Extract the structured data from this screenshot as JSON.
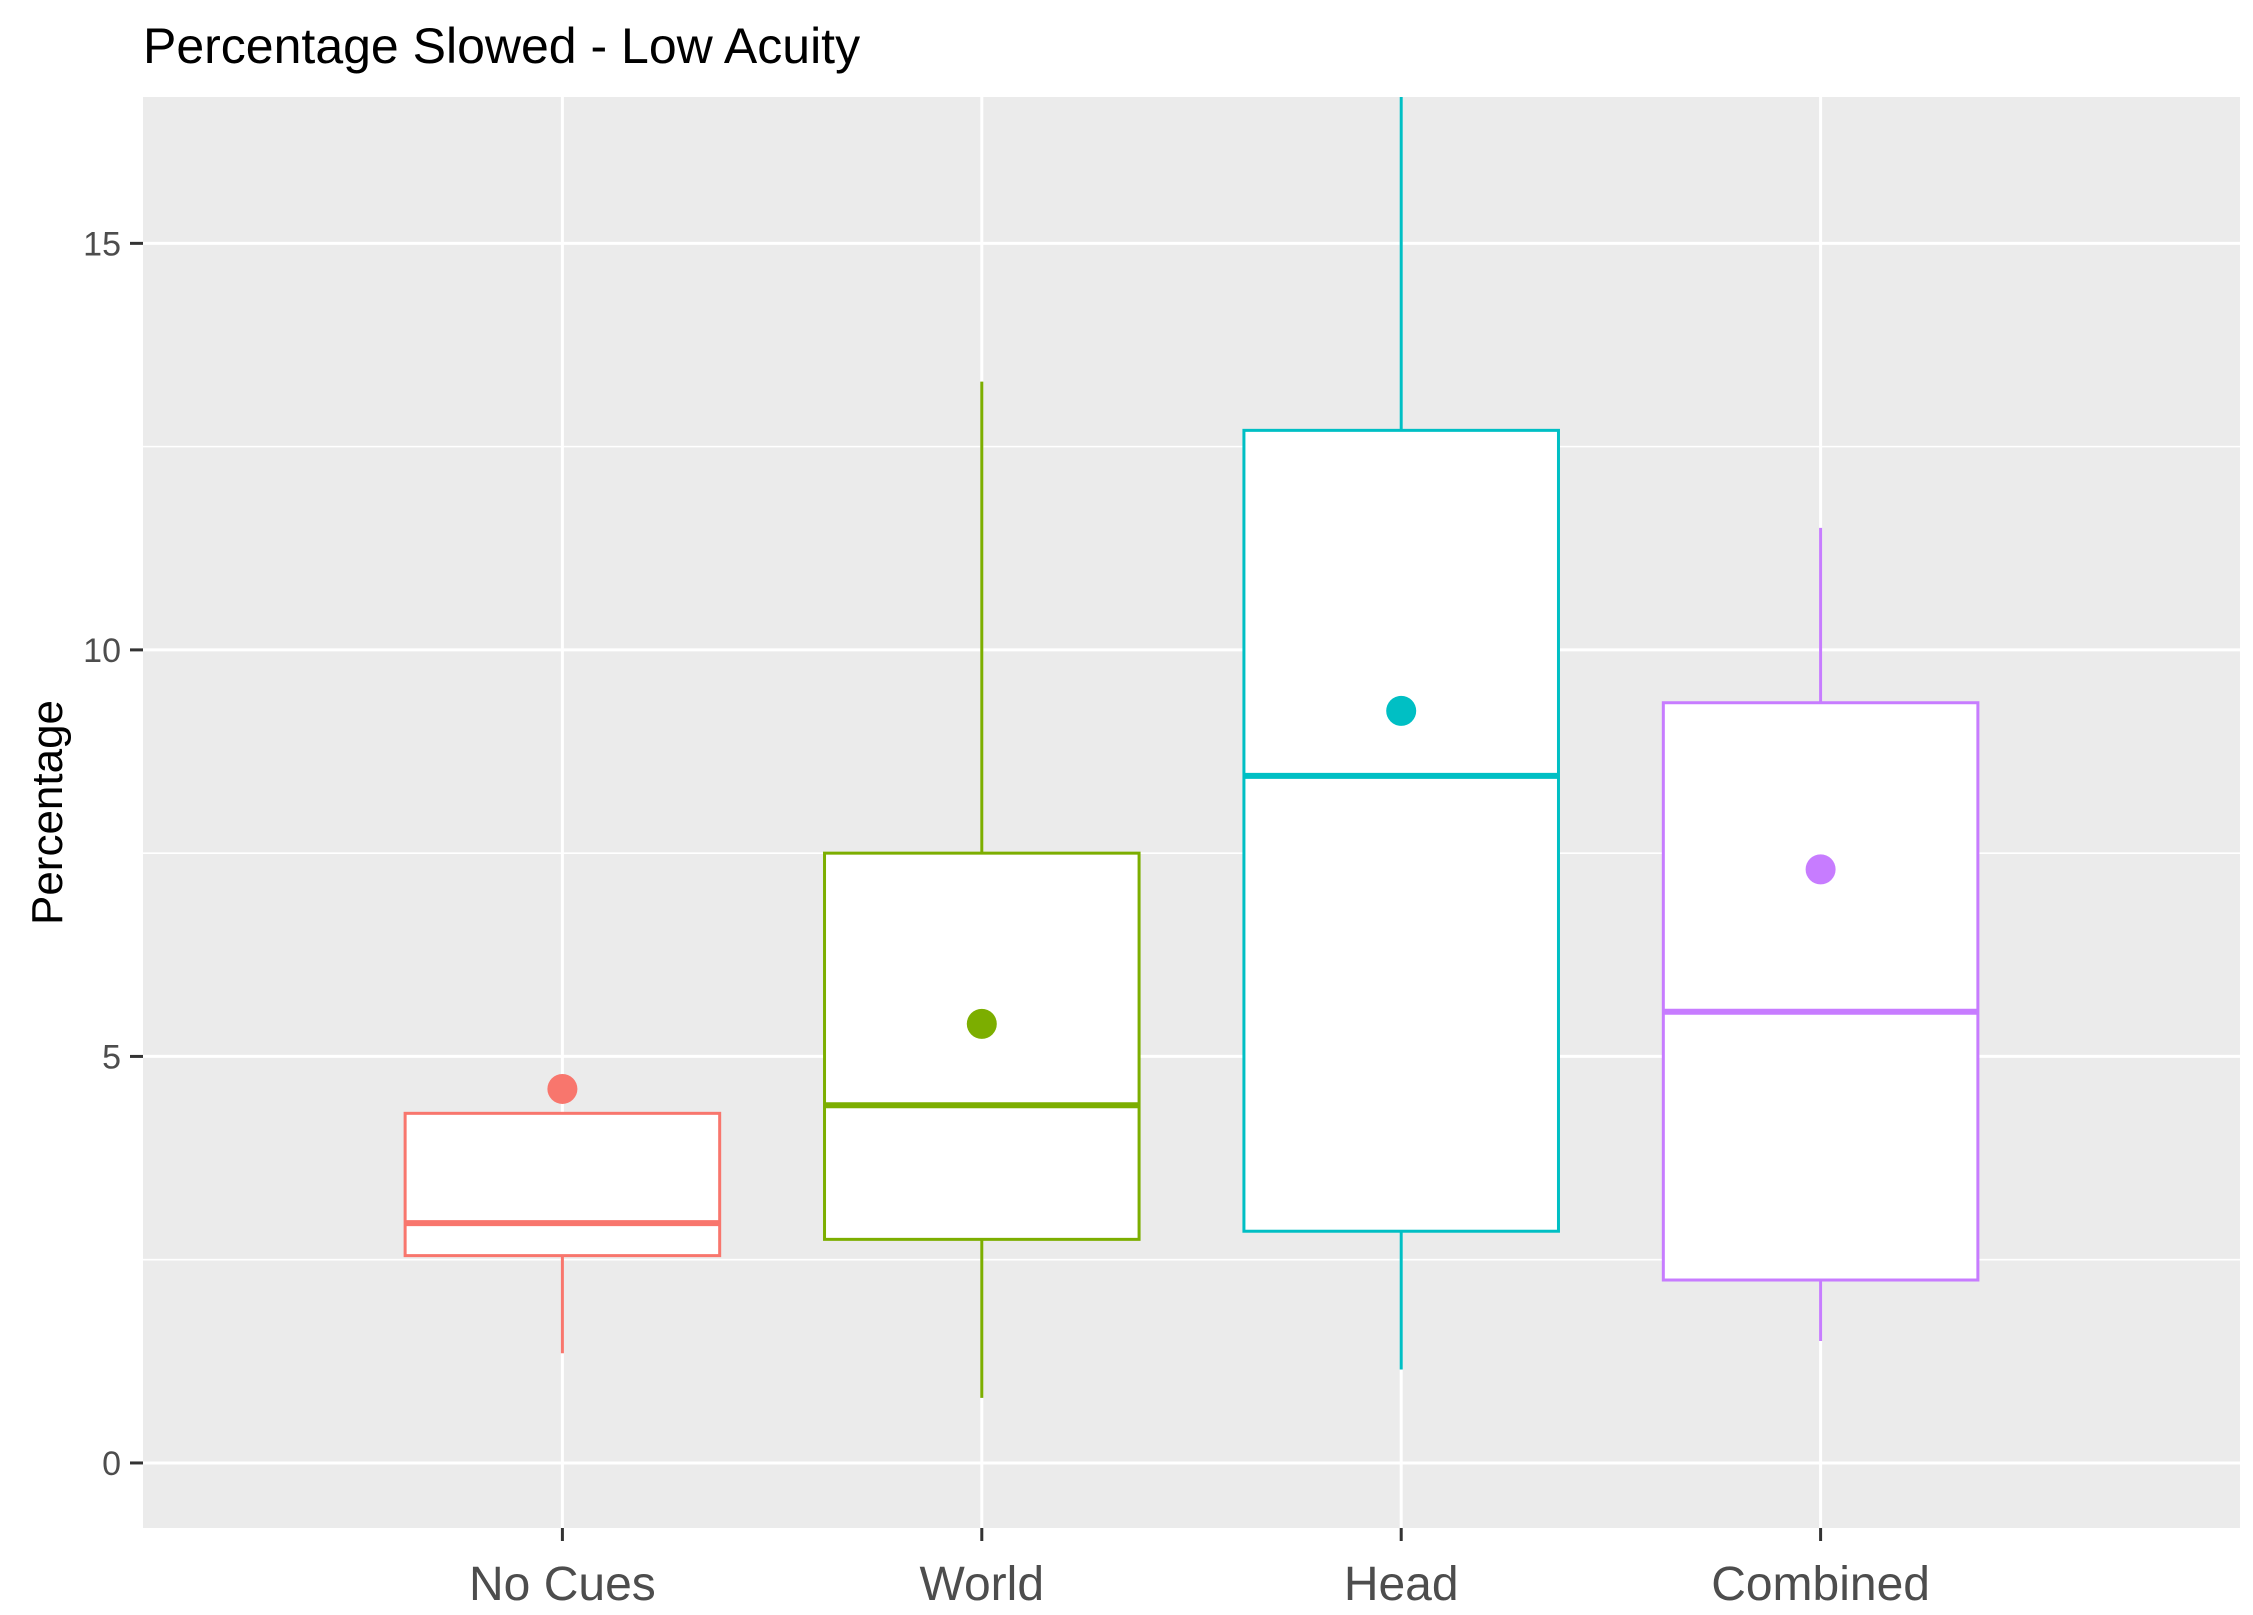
{
  "chart_data": {
    "type": "boxplot",
    "title": "Percentage Slowed - Low Acuity",
    "xlabel": "",
    "ylabel": "Percentage",
    "ylim": [
      -0.8,
      16.8
    ],
    "y_ticks": [
      0,
      5,
      10,
      15
    ],
    "y_minor_ticks": [
      2.5,
      7.5,
      12.5
    ],
    "grid": true,
    "legend": "none",
    "background_color": "#ebebeb",
    "gridline_color": "#ffffff",
    "categories": [
      "No Cues",
      "World",
      "Head",
      "Combined"
    ],
    "series": [
      {
        "category": "No Cues",
        "color": "#F8766D",
        "whisker_low": 1.35,
        "q1": 2.55,
        "median": 2.95,
        "q3": 4.3,
        "whisker_high": 4.3,
        "mean": 4.6
      },
      {
        "category": "World",
        "color": "#7CAE00",
        "whisker_low": 0.8,
        "q1": 2.75,
        "median": 4.4,
        "q3": 7.5,
        "whisker_high": 13.3,
        "mean": 5.4
      },
      {
        "category": "Head",
        "color": "#00BFC4",
        "whisker_low": 1.15,
        "q1": 2.85,
        "median": 8.45,
        "q3": 12.7,
        "whisker_high": 16.8,
        "mean": 9.25
      },
      {
        "category": "Combined",
        "color": "#C77CFF",
        "whisker_low": 1.5,
        "q1": 2.25,
        "median": 5.55,
        "q3": 9.35,
        "whisker_high": 11.5,
        "mean": 7.3
      }
    ]
  }
}
